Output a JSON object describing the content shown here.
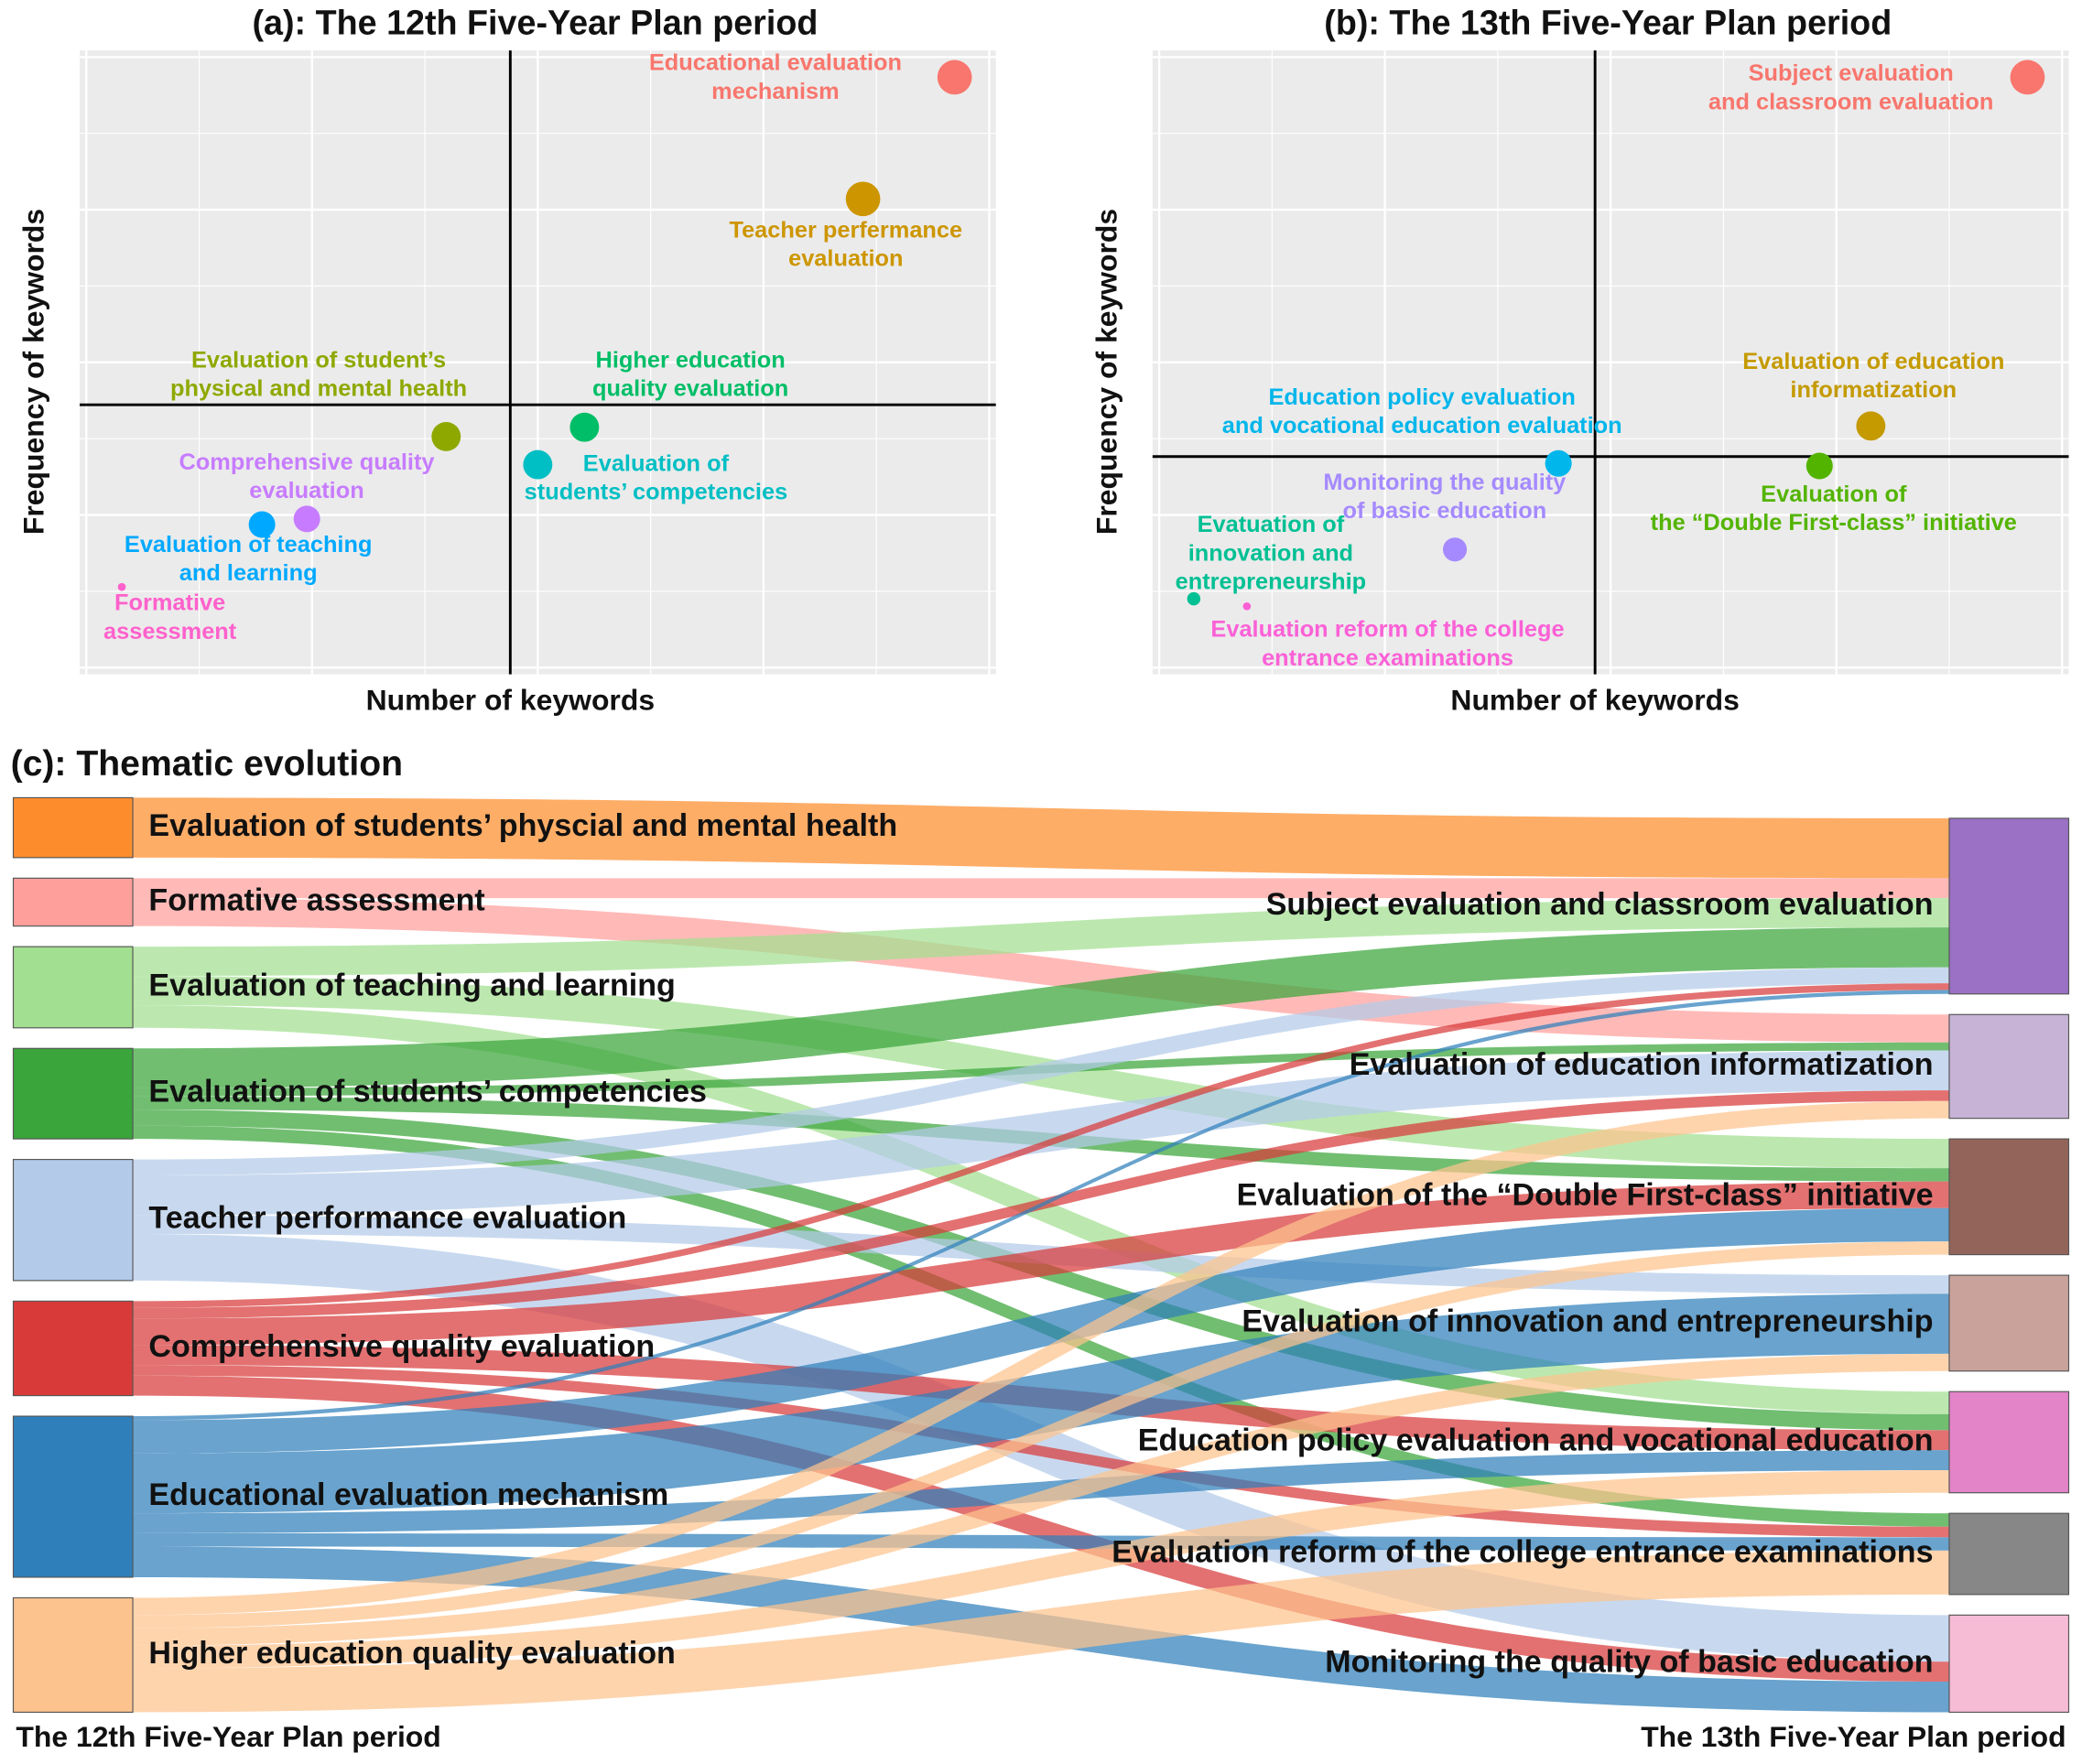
{
  "chart_data": [
    {
      "type": "scatter",
      "title": "(a): The 12th Five-Year Plan period",
      "xlabel": "Number of keywords",
      "ylabel": "Frequency of keywords",
      "xlim": [
        0,
        100
      ],
      "ylim": [
        0,
        100
      ],
      "crosshair_x": 47.0,
      "crosshair_y": 43.2,
      "points": [
        {
          "label": [
            "Educational evaluation",
            "mechanism"
          ],
          "x": 95.5,
          "y": 95.7,
          "size": 13,
          "color": "#f8766d"
        },
        {
          "label": [
            "Teacher perfermance",
            "evaluation"
          ],
          "x": 85.5,
          "y": 76.2,
          "size": 13,
          "color": "#cd9600"
        },
        {
          "label": [
            "Evaluation of student’s",
            "physical and mental health"
          ],
          "x": 40.0,
          "y": 38.1,
          "size": 11,
          "color": "#8fa800"
        },
        {
          "label": [
            "Higher education",
            "quality evaluation"
          ],
          "x": 55.1,
          "y": 39.6,
          "size": 11,
          "color": "#00be67"
        },
        {
          "label": [
            "Evaluation of",
            "students’ competencies"
          ],
          "x": 50.0,
          "y": 33.6,
          "size": 11,
          "color": "#00bfc4"
        },
        {
          "label": [
            "Comprehensive quality",
            "evaluation"
          ],
          "x": 24.8,
          "y": 24.9,
          "size": 10,
          "color": "#c77cff"
        },
        {
          "label": [
            "Evaluation of teaching",
            "and learning"
          ],
          "x": 19.9,
          "y": 24.0,
          "size": 10,
          "color": "#00a9ff"
        },
        {
          "label": [
            "Formative",
            "assessment"
          ],
          "x": 4.6,
          "y": 14.0,
          "size": 3,
          "color": "#ff61cc"
        }
      ]
    },
    {
      "type": "scatter",
      "title": "(b): The 13th Five-Year Plan period",
      "xlabel": "Number of keywords",
      "ylabel": "Frequency of keywords",
      "xlim": [
        0,
        100
      ],
      "ylim": [
        0,
        100
      ],
      "crosshair_x": 48.3,
      "crosshair_y": 34.9,
      "points": [
        {
          "label": [
            "Subject evaluation",
            "and classroom evaluation"
          ],
          "x": 95.5,
          "y": 95.7,
          "size": 13,
          "color": "#f8766d"
        },
        {
          "label": [
            "Evaluation of education",
            "informatization"
          ],
          "x": 78.4,
          "y": 39.8,
          "size": 11,
          "color": "#c49a00"
        },
        {
          "label": [
            "Evaluation of",
            "the “Double First-class” initiative"
          ],
          "x": 72.8,
          "y": 33.4,
          "size": 10,
          "color": "#53b400"
        },
        {
          "label": [
            "Education policy evaluation",
            "and vocational education evaluation"
          ],
          "x": 44.3,
          "y": 33.8,
          "size": 10,
          "color": "#00b6eb"
        },
        {
          "label": [
            "Monitoring the quality",
            "of basic education"
          ],
          "x": 33.0,
          "y": 20.0,
          "size": 9,
          "color": "#a58aff"
        },
        {
          "label": [
            "Evatuation of",
            "innovation and",
            "entrepreneurship"
          ],
          "x": 4.5,
          "y": 12.1,
          "size": 5,
          "color": "#00c094"
        },
        {
          "label": [
            "Evaluation  reform of the college",
            "entrance examinations"
          ],
          "x": 10.3,
          "y": 10.9,
          "size": 3,
          "color": "#fb61d7"
        }
      ]
    },
    {
      "type": "sankey",
      "title": "(c): Thematic evolution",
      "source_label": "The 12th Five-Year Plan period",
      "target_label": "The 13th Five-Year Plan period",
      "nodes": [
        {
          "name": "Evaluation of students’ physcial and mental health",
          "color": "#fd8d2c"
        },
        {
          "name": "Formative assessment",
          "color": "#ff9f9c"
        },
        {
          "name": "Evaluation of teaching and learning",
          "color": "#a2df90"
        },
        {
          "name": "Evaluation of students’ competencies",
          "color": "#3aa53a"
        },
        {
          "name": "Teacher performance evaluation",
          "color": "#b3cbe9"
        },
        {
          "name": "Comprehensive quality evaluation",
          "color": "#d83a3a"
        },
        {
          "name": "Educational evaluation mechanism",
          "color": "#2f7fbb"
        },
        {
          "name": "Higher education quality evaluation",
          "color": "#fdc38e"
        },
        {
          "name": "Subject evaluation and classroom evaluation",
          "color": "#9a71c4"
        },
        {
          "name": "Evaluation of education informatization",
          "color": "#c6b3d6"
        },
        {
          "name": "Evaluation of the “Double First-class” initiative",
          "color": "#93645a"
        },
        {
          "name": "Evaluation of innovation and entrepreneurship",
          "color": "#c9a39b"
        },
        {
          "name": "Education policy evaluation and vocational education",
          "color": "#e384c8"
        },
        {
          "name": "Evaluation reform of the college entrance examinations",
          "color": "#878787"
        },
        {
          "name": "Monitoring the quality of basic education",
          "color": "#f6bbd5"
        }
      ],
      "links": [
        {
          "source": "Evaluation of students’ physcial and mental health",
          "target": "Subject evaluation and classroom evaluation",
          "value": 45
        },
        {
          "source": "Formative assessment",
          "target": "Subject evaluation and classroom evaluation",
          "value": 15
        },
        {
          "source": "Formative assessment",
          "target": "Evaluation of education informatization",
          "value": 21
        },
        {
          "source": "Evaluation of teaching and learning",
          "target": "Subject evaluation and classroom evaluation",
          "value": 22
        },
        {
          "source": "Evaluation of teaching and learning",
          "target": "Evaluation of the “Double First-class” initiative",
          "value": 22
        },
        {
          "source": "Evaluation of teaching and learning",
          "target": "Education policy evaluation and vocational education",
          "value": 17
        },
        {
          "source": "Evaluation of students’ competencies",
          "target": "Subject evaluation and classroom evaluation",
          "value": 30
        },
        {
          "source": "Evaluation of students’ competencies",
          "target": "Evaluation of education informatization",
          "value": 6
        },
        {
          "source": "Evaluation of students’ competencies",
          "target": "Evaluation of the “Double First-class” initiative",
          "value": 10
        },
        {
          "source": "Evaluation of students’ competencies",
          "target": "Education policy evaluation and vocational education",
          "value": 12
        },
        {
          "source": "Evaluation of students’ competencies",
          "target": "Evaluation reform of the college entrance examinations",
          "value": 10
        },
        {
          "source": "Teacher performance evaluation",
          "target": "Subject evaluation and classroom evaluation",
          "value": 12
        },
        {
          "source": "Teacher performance evaluation",
          "target": "Evaluation of education informatization",
          "value": 30
        },
        {
          "source": "Teacher performance evaluation",
          "target": "Evaluation of innovation and entrepreneurship",
          "value": 14
        },
        {
          "source": "Teacher performance evaluation",
          "target": "Monitoring the quality of basic education",
          "value": 35
        },
        {
          "source": "Comprehensive quality evaluation",
          "target": "Subject evaluation and classroom evaluation",
          "value": 5
        },
        {
          "source": "Comprehensive quality evaluation",
          "target": "Evaluation of education informatization",
          "value": 8
        },
        {
          "source": "Comprehensive quality evaluation",
          "target": "Evaluation of the “Double First-class” initiative",
          "value": 20
        },
        {
          "source": "Comprehensive quality evaluation",
          "target": "Education policy evaluation and vocational education",
          "value": 15
        },
        {
          "source": "Comprehensive quality evaluation",
          "target": "Evaluation reform of the college entrance examinations",
          "value": 8
        },
        {
          "source": "Comprehensive quality evaluation",
          "target": "Monitoring the quality of basic education",
          "value": 15
        },
        {
          "source": "Educational evaluation mechanism",
          "target": "Subject evaluation and classroom evaluation",
          "value": 3
        },
        {
          "source": "Educational evaluation mechanism",
          "target": "Evaluation of the “Double First-class” initiative",
          "value": 25
        },
        {
          "source": "Educational evaluation mechanism",
          "target": "Evaluation of innovation and entrepreneurship",
          "value": 45
        },
        {
          "source": "Educational evaluation mechanism",
          "target": "Education policy evaluation and vocational education",
          "value": 15
        },
        {
          "source": "Educational evaluation mechanism",
          "target": "Evaluation reform of the college entrance examinations",
          "value": 10
        },
        {
          "source": "Educational evaluation mechanism",
          "target": "Monitoring the quality of basic education",
          "value": 23
        },
        {
          "source": "Higher education quality evaluation",
          "target": "Evaluation of education informatization",
          "value": 13
        },
        {
          "source": "Higher education quality evaluation",
          "target": "Evaluation of the “Double First-class” initiative",
          "value": 10
        },
        {
          "source": "Higher education quality evaluation",
          "target": "Evaluation of innovation and entrepreneurship",
          "value": 13
        },
        {
          "source": "Higher education quality evaluation",
          "target": "Education policy evaluation and vocational education",
          "value": 17
        },
        {
          "source": "Higher education quality evaluation",
          "target": "Evaluation reform of the college entrance examinations",
          "value": 33
        }
      ]
    }
  ]
}
